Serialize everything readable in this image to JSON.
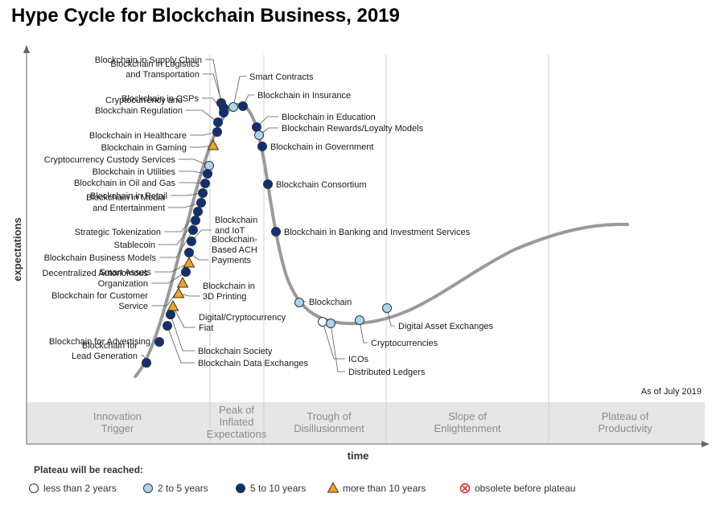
{
  "title": "Hype Cycle for Blockchain Business, 2019",
  "as_of": "As of July 2019",
  "axes": {
    "y_label": "expectations",
    "x_label": "time"
  },
  "phases": [
    {
      "lines": [
        "Innovation",
        "Trigger"
      ]
    },
    {
      "lines": [
        "Peak of",
        "Inflated",
        "Expectations"
      ]
    },
    {
      "lines": [
        "Trough of",
        "Disillusionment"
      ]
    },
    {
      "lines": [
        "Slope of",
        "Enlightenment"
      ]
    },
    {
      "lines": [
        "Plateau of",
        "Productivity"
      ]
    }
  ],
  "legend": {
    "title": "Plateau will be reached:",
    "items": [
      {
        "key": "lt2",
        "label": "less than 2 years",
        "marker": "circle",
        "color": "#ffffff"
      },
      {
        "key": "2to5",
        "label": "2 to 5 years",
        "marker": "circle",
        "color": "#a9d5f2"
      },
      {
        "key": "5to10",
        "label": "5 to 10 years",
        "marker": "circle",
        "color": "#0f2f78"
      },
      {
        "key": "gt10",
        "label": "more than 10 years",
        "marker": "triangle",
        "color": "#f3a51f"
      },
      {
        "key": "obs",
        "label": "obsolete before plateau",
        "marker": "x-circle",
        "color": "#e02020"
      }
    ]
  },
  "technologies": [
    {
      "lines": [
        "Blockchain in Supply Chain"
      ],
      "category": "5to10"
    },
    {
      "lines": [
        "Blockchain in Logistics",
        "and Transportation"
      ],
      "category": "5to10"
    },
    {
      "lines": [
        "Blockchain in CSPs"
      ],
      "category": "5to10"
    },
    {
      "lines": [
        "Cryptocurrency and",
        "Blockchain Regulation"
      ],
      "category": "5to10"
    },
    {
      "lines": [
        "Blockchain in Healthcare"
      ],
      "category": "5to10"
    },
    {
      "lines": [
        "Blockchain in Gaming"
      ],
      "category": "gt10"
    },
    {
      "lines": [
        "Cryptocurrency Custody Services"
      ],
      "category": "2to5"
    },
    {
      "lines": [
        "Blockchain in Utilities"
      ],
      "category": "5to10"
    },
    {
      "lines": [
        "Blockchain in Oil and Gas"
      ],
      "category": "5to10"
    },
    {
      "lines": [
        "Blockchain in Retail"
      ],
      "category": "5to10"
    },
    {
      "lines": [
        "Blockchain in Media",
        "and Entertainment"
      ],
      "category": "5to10"
    },
    {
      "lines": [
        "Strategic Tokenization"
      ],
      "category": "5to10"
    },
    {
      "lines": [
        "Stablecoin"
      ],
      "category": "5to10"
    },
    {
      "lines": [
        "Blockchain Business Models"
      ],
      "category": "5to10"
    },
    {
      "lines": [
        "Smart Assets"
      ],
      "category": "gt10"
    },
    {
      "lines": [
        "Decentralized Autonomous",
        "Organization"
      ],
      "category": "5to10"
    },
    {
      "lines": [
        "Blockchain for Customer",
        "Service"
      ],
      "category": "gt10"
    },
    {
      "lines": [
        "Blockchain for Advertising"
      ],
      "category": "5to10"
    },
    {
      "lines": [
        "Blockchain for",
        "Lead Generation"
      ],
      "category": "5to10"
    },
    {
      "lines": [
        "Smart Contracts"
      ],
      "category": "2to5"
    },
    {
      "lines": [
        "Blockchain in Insurance"
      ],
      "category": "5to10"
    },
    {
      "lines": [
        "Blockchain in Education"
      ],
      "category": "5to10"
    },
    {
      "lines": [
        "Blockchain Rewards/Loyalty Models"
      ],
      "category": "2to5"
    },
    {
      "lines": [
        "Blockchain in Government"
      ],
      "category": "5to10"
    },
    {
      "lines": [
        "Blockchain Consortium"
      ],
      "category": "5to10"
    },
    {
      "lines": [
        "Blockchain in Banking and Investment Services"
      ],
      "category": "5to10"
    },
    {
      "lines": [
        "Blockchain",
        "and IoT"
      ],
      "category": "5to10"
    },
    {
      "lines": [
        "Blockchain-",
        "Based ACH",
        "Payments"
      ],
      "category": "5to10"
    },
    {
      "lines": [
        "Blockchain in",
        "3D Printing"
      ],
      "category": "gt10"
    },
    {
      "lines": [
        "Digital/Cryptocurrency",
        "Fiat"
      ],
      "category": "gt10"
    },
    {
      "lines": [
        "Blockchain Society"
      ],
      "category": "5to10"
    },
    {
      "lines": [
        "Blockchain Data Exchanges"
      ],
      "category": "5to10"
    },
    {
      "lines": [
        "Blockchain"
      ],
      "category": "2to5"
    },
    {
      "lines": [
        "ICOs"
      ],
      "category": "lt2"
    },
    {
      "lines": [
        "Distributed Ledgers"
      ],
      "category": "2to5"
    },
    {
      "lines": [
        "Cryptocurrencies"
      ],
      "category": "2to5"
    },
    {
      "lines": [
        "Digital Asset Exchanges"
      ],
      "category": "2to5"
    }
  ]
}
